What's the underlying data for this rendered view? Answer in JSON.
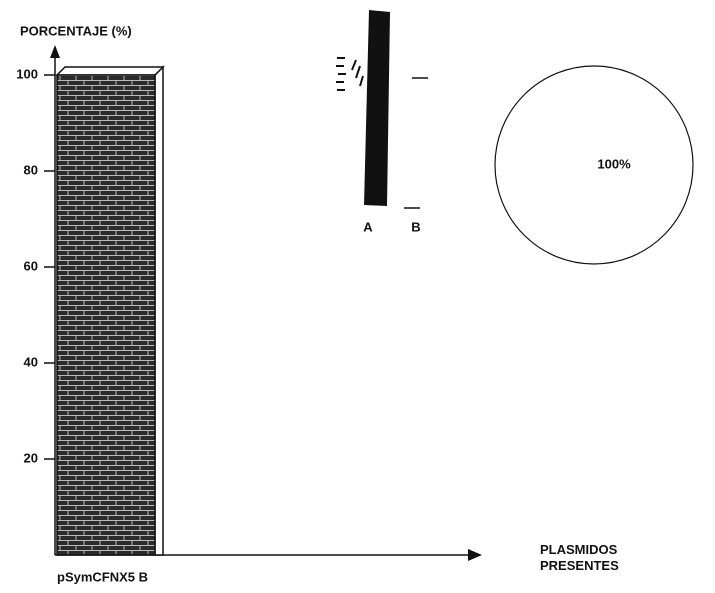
{
  "chart_data": [
    {
      "type": "bar",
      "y_label": "PORCENTAJE (%)",
      "x_label": "PLASMIDOS PRESENTES",
      "categories": [
        "pSymCFNX5 B"
      ],
      "values": [
        100
      ],
      "color": "#2b2b2b",
      "ylim": [
        0,
        100
      ],
      "yticks": [
        20,
        40,
        60,
        80,
        100
      ]
    },
    {
      "type": "pie",
      "values": [
        100
      ],
      "value_labels": [
        "100%"
      ],
      "colors": [
        "#ffffff"
      ]
    }
  ],
  "gel": {
    "lanes": [
      "A",
      "B"
    ]
  }
}
